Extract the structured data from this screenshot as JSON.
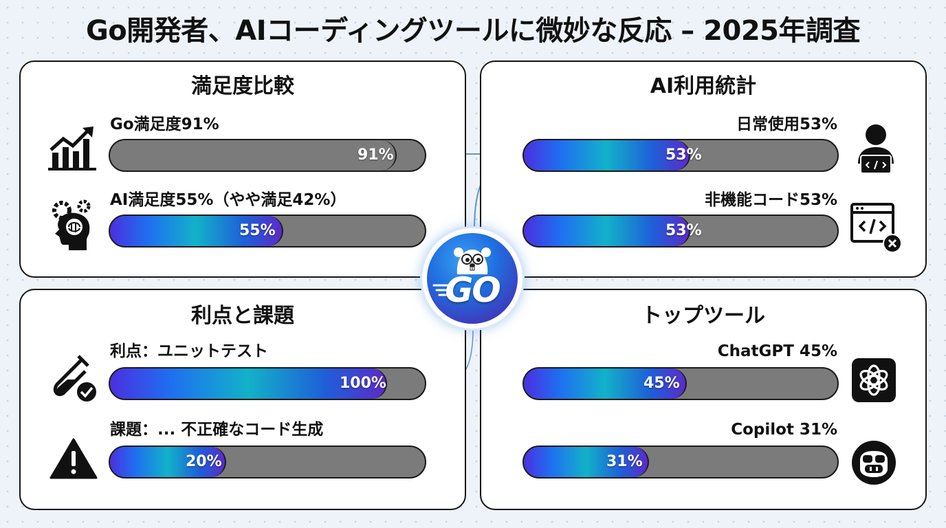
{
  "title": "Go開発者、AIコーディングツールに微妙な反応 – 2025年調査",
  "panels": {
    "satisfaction": {
      "title": "満足度比較",
      "rows": [
        {
          "label": "Go満足度91%",
          "value": 91,
          "fill_label": "91%",
          "fill_style": "grey",
          "icon": "growth-chart-icon"
        },
        {
          "label": "AI満足度55%（やや満足42%）",
          "value": 55,
          "fill_label": "55%",
          "fill_style": "gradient",
          "icon": "brain-gears-icon"
        }
      ]
    },
    "ai_usage": {
      "title": "AI利用統計",
      "rows": [
        {
          "label": "日常使用53%",
          "value": 53,
          "fill_label": "53%",
          "icon": "developer-laptop-icon"
        },
        {
          "label": "非機能コード53%",
          "value": 53,
          "fill_label": "53%",
          "icon": "code-window-error-icon"
        }
      ]
    },
    "pros_cons": {
      "title": "利点と課題",
      "rows": [
        {
          "label": "利点：ユニットテスト",
          "value": 100,
          "fill_label": "100%",
          "icon": "test-tube-check-icon"
        },
        {
          "label": "課題：... 不正確なコード生成",
          "value": 20,
          "fill_label": "20%",
          "icon": "warning-icon"
        }
      ]
    },
    "top_tools": {
      "title": "トップツール",
      "rows": [
        {
          "label": "ChatGPT 45%",
          "value": 45,
          "fill_label": "45%",
          "icon": "chatgpt-logo-icon"
        },
        {
          "label": "Copilot 31%",
          "value": 31,
          "fill_label": "31%",
          "icon": "copilot-logo-icon"
        }
      ]
    }
  },
  "center_logo": {
    "text": "GO",
    "icon": "go-gopher-logo-icon"
  },
  "colors": {
    "bar_track": "#7b7b7b",
    "gradient_start": "#4a2fe0",
    "gradient_mid": "#12b2c8",
    "gradient_end": "#5b2bc8",
    "logo_blue": "#1f6fe0"
  }
}
